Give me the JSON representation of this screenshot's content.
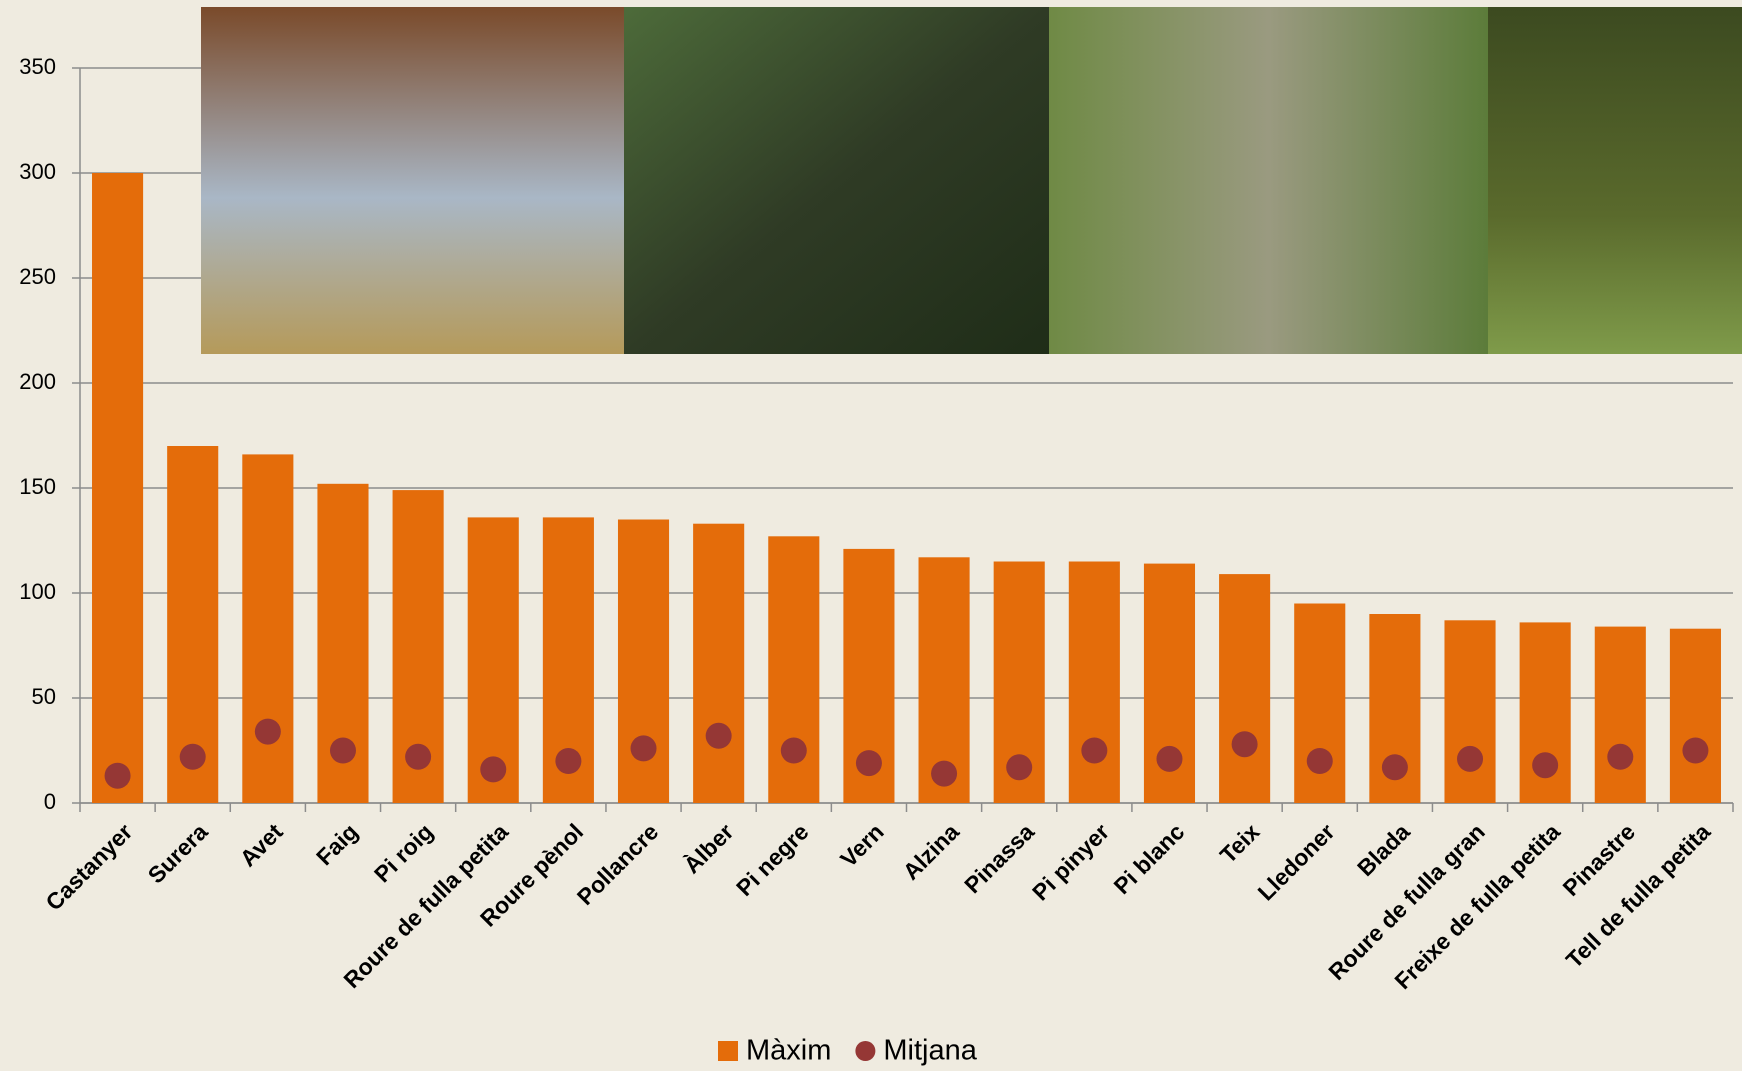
{
  "chart_data": {
    "type": "bar",
    "categories": [
      "Castanyer",
      "Surera",
      "Avet",
      "Faig",
      "Pi roig",
      "Roure de fulla petita",
      "Roure pènol",
      "Pollancre",
      "Àlber",
      "Pi negre",
      "Vern",
      "Alzina",
      "Pinassa",
      "Pi pinyer",
      "Pi blanc",
      "Teix",
      "Lledoner",
      "Blada",
      "Roure de fulla gran",
      "Freixe de fulla petita",
      "Pinastre",
      "Tell de fulla petita"
    ],
    "series": [
      {
        "name": "Màxim",
        "type": "bar",
        "color": "#e46c0a",
        "values": [
          300,
          170,
          166,
          152,
          149,
          136,
          136,
          135,
          133,
          127,
          121,
          117,
          115,
          115,
          114,
          109,
          95,
          90,
          87,
          86,
          84,
          83
        ]
      },
      {
        "name": "Mitjana",
        "type": "scatter",
        "color": "#953735",
        "values": [
          13,
          22,
          34,
          25,
          22,
          16,
          20,
          26,
          32,
          25,
          19,
          14,
          17,
          25,
          21,
          28,
          20,
          17,
          21,
          18,
          22,
          25
        ]
      }
    ],
    "ylim": [
      0,
      350
    ],
    "yticks": [
      0,
      50,
      100,
      150,
      200,
      250,
      300,
      350
    ],
    "grid": true,
    "legend": "bottom"
  }
}
